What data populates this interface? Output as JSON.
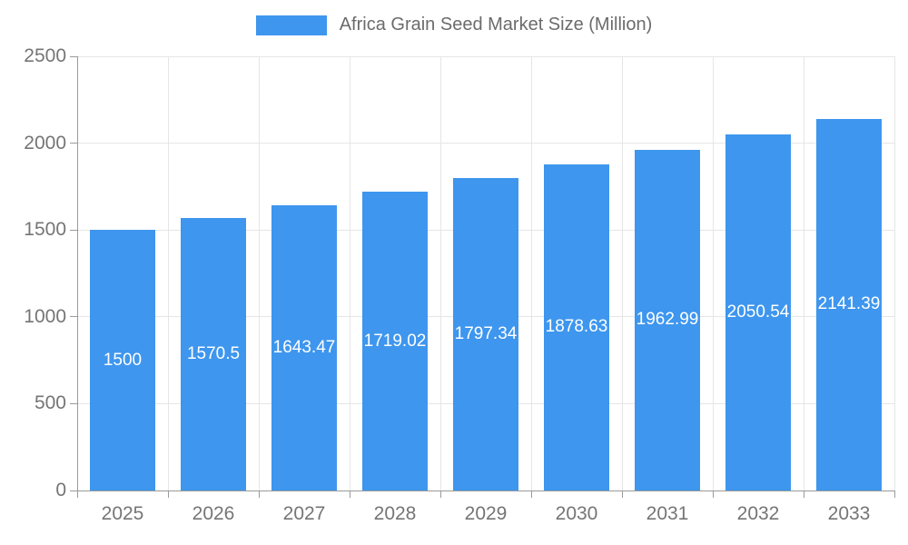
{
  "chart_data": {
    "type": "bar",
    "title": "Africa Grain Seed Market Size (Million)",
    "categories": [
      "2025",
      "2026",
      "2027",
      "2028",
      "2029",
      "2030",
      "2031",
      "2032",
      "2033"
    ],
    "values": [
      1500,
      1570.5,
      1643.47,
      1719.02,
      1797.34,
      1878.63,
      1962.99,
      2050.54,
      2141.39
    ],
    "value_labels": [
      "1500",
      "1570.5",
      "1643.47",
      "1719.02",
      "1797.34",
      "1878.63",
      "1962.99",
      "2050.54",
      "2141.39"
    ],
    "xlabel": "",
    "ylabel": "",
    "ylim": [
      0,
      2500
    ],
    "yticks": [
      0,
      500,
      1000,
      1500,
      2000,
      2500
    ],
    "bar_color": "#3e96ee",
    "grid": true,
    "legend_position": "top"
  }
}
